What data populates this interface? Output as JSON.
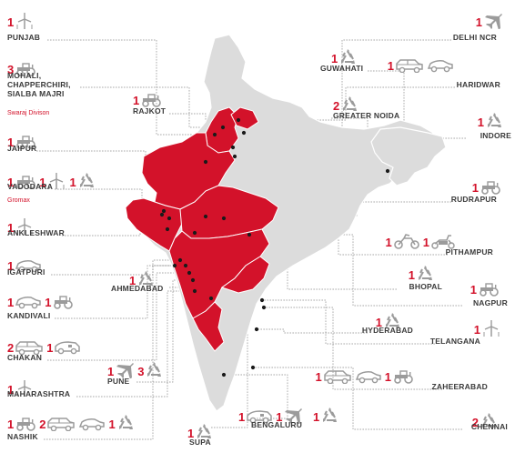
{
  "colors": {
    "state_fill": "#d3122a",
    "land_fill": "#dcdcdc",
    "border": "#ffffff",
    "leader_line": "#8c8c8c",
    "icon_gray": "#9b9b9b",
    "count": "#d3122a",
    "label": "#3a3a3a"
  },
  "map": {
    "highlighted_states": [
      "Punjab",
      "Haryana",
      "Delhi",
      "Rajasthan",
      "Gujarat",
      "Madhya Pradesh",
      "Maharashtra"
    ]
  },
  "locations": [
    {
      "id": "punjab",
      "label": "PUNJAB",
      "facilities": [
        {
          "count": "1",
          "icon": "wind-turbine-icon"
        }
      ]
    },
    {
      "id": "mohali",
      "label": "MOHALI,\nCHAPPERCHIRI,\nSIALBA MAJRI",
      "sublabel": "Swaraj Divison",
      "facilities": [
        {
          "count": "3",
          "icon": "tractor-icon"
        }
      ]
    },
    {
      "id": "rajkot",
      "label": "RAJKOT",
      "facilities": [
        {
          "count": "1",
          "icon": "tractor-icon"
        }
      ]
    },
    {
      "id": "jaipur",
      "label": "JAIPUR",
      "facilities": [
        {
          "count": "1",
          "icon": "tractor-icon"
        }
      ]
    },
    {
      "id": "vadodara",
      "label": "VADODARA",
      "sublabel": "Gromax",
      "facilities": [
        {
          "count": "1",
          "icon": "tractor-icon"
        },
        {
          "count": "1",
          "icon": "wind-turbine-icon"
        },
        {
          "count": "1",
          "icon": "recycle-icon"
        }
      ]
    },
    {
      "id": "ankleshwar",
      "label": "ANKLESHWAR",
      "facilities": [
        {
          "count": "1",
          "icon": "wind-turbine-icon"
        }
      ]
    },
    {
      "id": "igatpuri",
      "label": "IGATPURI",
      "facilities": [
        {
          "count": "1",
          "icon": "car-icon"
        }
      ]
    },
    {
      "id": "ahmedabad",
      "label": "AHMEDABAD",
      "facilities": [
        {
          "count": "1",
          "icon": "recycle-icon"
        }
      ]
    },
    {
      "id": "kandivali",
      "label": "KANDIVALI",
      "facilities": [
        {
          "count": "1",
          "icon": "car-icon"
        },
        {
          "count": "1",
          "icon": "tractor-icon"
        }
      ]
    },
    {
      "id": "chakan",
      "label": "CHAKAN",
      "facilities": [
        {
          "count": "2",
          "icon": "suv-icon"
        },
        {
          "count": "1",
          "icon": "truck-icon"
        }
      ]
    },
    {
      "id": "pune",
      "label": "PUNE",
      "facilities": [
        {
          "count": "1",
          "icon": "airplane-icon"
        },
        {
          "count": "3",
          "icon": "recycle-icon"
        }
      ]
    },
    {
      "id": "maharashtra",
      "label": "MAHARASHTRA",
      "facilities": [
        {
          "count": "1",
          "icon": "wind-turbine-icon"
        }
      ]
    },
    {
      "id": "nashik",
      "label": "NASHIK",
      "facilities": [
        {
          "count": "1",
          "icon": "tractor-icon"
        },
        {
          "count": "2",
          "icon": "suv-icon"
        },
        {
          "count": "",
          "icon": "car-icon"
        },
        {
          "count": "1",
          "icon": "recycle-icon"
        }
      ]
    },
    {
      "id": "supa",
      "label": "SUPA",
      "facilities": [
        {
          "count": "1",
          "icon": "recycle-icon"
        }
      ]
    },
    {
      "id": "bengaluru",
      "label": "BENGALURU",
      "facilities": [
        {
          "count": "1",
          "icon": "truck-icon"
        },
        {
          "count": "1",
          "icon": "airplane-icon"
        }
      ]
    },
    {
      "id": "bengaluru2",
      "label": "",
      "facilities": [
        {
          "count": "1",
          "icon": "recycle-icon"
        }
      ]
    },
    {
      "id": "delhi",
      "label": "DELHI NCR",
      "facilities": [
        {
          "count": "1",
          "icon": "airplane-icon"
        }
      ]
    },
    {
      "id": "guwahati",
      "label": "GUWAHATI",
      "facilities": [
        {
          "count": "1",
          "icon": "recycle-icon"
        }
      ]
    },
    {
      "id": "haridwar",
      "label": "HARIDWAR",
      "facilities": [
        {
          "count": "1",
          "icon": "suv-icon"
        },
        {
          "count": "",
          "icon": "car-icon"
        }
      ]
    },
    {
      "id": "greaternoida",
      "label": "GREATER NOIDA",
      "facilities": [
        {
          "count": "2",
          "icon": "recycle-icon"
        }
      ]
    },
    {
      "id": "indore",
      "label": "INDORE",
      "facilities": [
        {
          "count": "1",
          "icon": "recycle-icon"
        }
      ]
    },
    {
      "id": "rudrapur",
      "label": "RUDRAPUR",
      "facilities": [
        {
          "count": "1",
          "icon": "tractor-icon"
        }
      ]
    },
    {
      "id": "pithampur",
      "label": "PITHAMPUR",
      "facilities": [
        {
          "count": "1",
          "icon": "motorcycle-icon"
        },
        {
          "count": "1",
          "icon": "scooter-icon"
        }
      ]
    },
    {
      "id": "bhopal",
      "label": "BHOPAL",
      "facilities": [
        {
          "count": "1",
          "icon": "recycle-icon"
        }
      ]
    },
    {
      "id": "nagpur",
      "label": "NAGPUR",
      "facilities": [
        {
          "count": "1",
          "icon": "tractor-icon"
        }
      ]
    },
    {
      "id": "hyderabad",
      "label": "HYDERABAD",
      "facilities": [
        {
          "count": "1",
          "icon": "recycle-icon"
        }
      ]
    },
    {
      "id": "telangana",
      "label": "TELANGANA",
      "facilities": [
        {
          "count": "1",
          "icon": "wind-turbine-icon"
        }
      ]
    },
    {
      "id": "zaheerabad",
      "label": "ZAHEERABAD",
      "facilities": [
        {
          "count": "1",
          "icon": "suv-icon"
        },
        {
          "count": "",
          "icon": "car-icon"
        },
        {
          "count": "1",
          "icon": "tractor-icon"
        }
      ]
    },
    {
      "id": "chennai",
      "label": "CHENNAI",
      "facilities": [
        {
          "count": "2",
          "icon": "recycle-icon"
        }
      ]
    }
  ]
}
